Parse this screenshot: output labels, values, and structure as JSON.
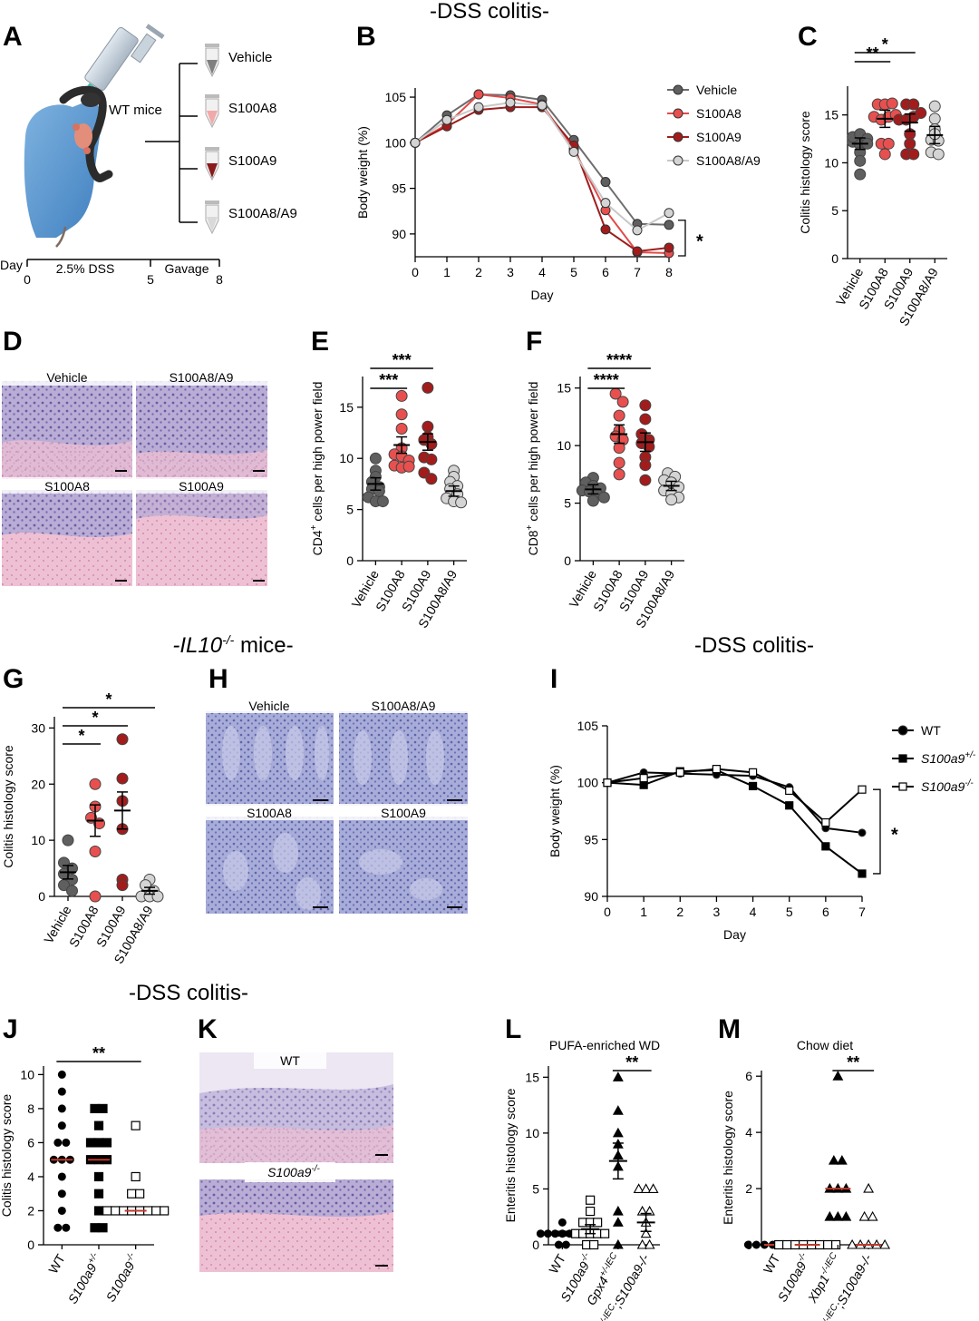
{
  "section_titles": {
    "top": "-DSS colitis-",
    "il10": "-IL10",
    "il10_sup": "-/-",
    "il10_tail": " mice-",
    "dss_right": "-DSS colitis-",
    "dss_bottom": "-DSS colitis-"
  },
  "panel_letters": {
    "A": "A",
    "B": "B",
    "C": "C",
    "D": "D",
    "E": "E",
    "F": "F",
    "G": "G",
    "H": "H",
    "I": "I",
    "J": "J",
    "K": "K",
    "L": "L",
    "M": "M"
  },
  "schematic": {
    "mouse_label": "WT mice",
    "tubes": [
      "Vehicle",
      "S100A8",
      "S100A9",
      "S100A8/A9"
    ],
    "tube_colors": [
      "#7f7f7f",
      "#f2a9a9",
      "#8b1a1a",
      "#d9d9d9"
    ],
    "timeline": {
      "day_label": "Day",
      "dss_label": "2.5% DSS",
      "gavage_label": "Gavage",
      "ticks": [
        "0",
        "5",
        "8"
      ]
    }
  },
  "histology": {
    "D": [
      "Vehicle",
      "S100A8/A9",
      "S100A8",
      "S100A9"
    ],
    "H": [
      "Vehicle",
      "S100A8/A9",
      "S100A8",
      "S100A9"
    ],
    "K": [
      "WT",
      "S100a9",
      "-/-"
    ]
  },
  "colors": {
    "vehicle": "#5f5f5f",
    "s100a8": "#e8504f",
    "s100a9": "#a31c1c",
    "s100a8a9": "#d4d4d4",
    "he_purple": "#9c8fc4",
    "he_pink": "#e6a3bf",
    "blue_stain": "#8d94c9"
  },
  "chart_data": [
    {
      "panel": "B",
      "type": "line",
      "title": "",
      "xlabel": "Day",
      "ylabel": "Body weight (%)",
      "x": [
        0,
        1,
        2,
        3,
        4,
        5,
        6,
        7,
        8
      ],
      "ylim": [
        87.5,
        106
      ],
      "yticks": [
        90,
        95,
        100,
        105
      ],
      "series": [
        {
          "name": "Vehicle",
          "values": [
            100,
            103,
            105.3,
            105.2,
            104.7,
            100.3,
            95.7,
            91.1,
            91.0
          ]
        },
        {
          "name": "S100A8",
          "values": [
            100,
            102,
            105.3,
            104.9,
            104.2,
            99.3,
            92.6,
            88.0,
            87.9
          ]
        },
        {
          "name": "S100A9",
          "values": [
            100,
            101.8,
            103.6,
            103.9,
            103.9,
            99.7,
            90.5,
            88.1,
            88.5
          ]
        },
        {
          "name": "S100A8/A9",
          "values": [
            100,
            102.5,
            103.9,
            104.4,
            104.1,
            99.0,
            93.4,
            90.4,
            92.3
          ]
        }
      ],
      "significance": "*",
      "legend_position": "top-right"
    },
    {
      "panel": "C",
      "type": "scatter",
      "ylabel": "Colitis histology score",
      "ylim": [
        0,
        18
      ],
      "yticks": [
        0,
        5,
        10,
        15
      ],
      "categories": [
        "Vehicle",
        "S100A8",
        "S100A9",
        "S100A8/A9"
      ],
      "points": [
        [
          12.2,
          11.9,
          12.7,
          13.0,
          11.1,
          12.5,
          10.2,
          8.8,
          12.0
        ],
        [
          16.1,
          16.1,
          16.2,
          14.8,
          14.5,
          12.0,
          10.9,
          12.0,
          14.8,
          15.0
        ],
        [
          16.1,
          16.1,
          14.5,
          12.0,
          10.9,
          10.9,
          14.5,
          14.8,
          15.2,
          13.0
        ],
        [
          15.9,
          14.6,
          13.5,
          11.1,
          12.4,
          10.9,
          12.3,
          13.0
        ]
      ],
      "means": [
        12.0,
        14.6,
        14.2,
        12.9
      ],
      "comparisons": [
        {
          "from": 0,
          "to": 1,
          "label": "**"
        },
        {
          "from": 0,
          "to": 2,
          "label": "*"
        }
      ]
    },
    {
      "panel": "E",
      "type": "scatter",
      "ylabel": "CD4",
      "ylabel_sup": "+",
      "ylabel_tail": " cells per high power field",
      "ylim": [
        0,
        18
      ],
      "yticks": [
        0,
        5,
        10,
        15
      ],
      "categories": [
        "Vehicle",
        "S100A8",
        "S100A9",
        "S100A8/A9"
      ],
      "points": [
        [
          10.0,
          8.8,
          8.2,
          7.7,
          7.2,
          7.0,
          6.8,
          6.2,
          5.8,
          5.8
        ],
        [
          16.1,
          14.3,
          12.9,
          11.0,
          10.4,
          10.2,
          9.8,
          9.3,
          9.1,
          9.2
        ],
        [
          16.9,
          13.1,
          12.1,
          11.8,
          11.4,
          10.1,
          9.9,
          8.6,
          8.0
        ],
        [
          8.8,
          8.2,
          7.7,
          7.3,
          7.0,
          6.5,
          6.1,
          5.8,
          5.7
        ]
      ],
      "means": [
        7.5,
        11.3,
        11.6,
        6.8
      ],
      "comparisons": [
        {
          "from": 0,
          "to": 1,
          "label": "***"
        },
        {
          "from": 0,
          "to": 2,
          "label": "***"
        }
      ]
    },
    {
      "panel": "F",
      "type": "scatter",
      "ylabel": "CD8",
      "ylabel_sup": "+",
      "ylabel_tail": " cells per high power field",
      "ylim": [
        0,
        16
      ],
      "yticks": [
        0,
        5,
        10,
        15
      ],
      "categories": [
        "Vehicle",
        "S100A8",
        "S100A9",
        "S100A8/A9"
      ],
      "points": [
        [
          7.2,
          6.8,
          6.5,
          6.3,
          6.1,
          6.0,
          5.8,
          5.5,
          5.2
        ],
        [
          14.5,
          13.8,
          12.6,
          11.3,
          10.8,
          10.5,
          9.8,
          8.5,
          7.5
        ],
        [
          13.5,
          12.3,
          11.0,
          10.5,
          10.2,
          9.9,
          9.0,
          8.3,
          7.0
        ],
        [
          7.6,
          7.3,
          7.0,
          6.8,
          6.4,
          6.1,
          5.8,
          5.5,
          5.3
        ]
      ],
      "means": [
        6.2,
        11.0,
        10.3,
        6.5
      ],
      "comparisons": [
        {
          "from": 0,
          "to": 1,
          "label": "****"
        },
        {
          "from": 0,
          "to": 2,
          "label": "****"
        }
      ]
    },
    {
      "panel": "G",
      "type": "scatter",
      "ylabel": "Colitis histology score",
      "ylim": [
        0,
        32
      ],
      "yticks": [
        0,
        10,
        20,
        30
      ],
      "categories": [
        "Vehicle",
        "S100A8",
        "S100A9",
        "S100A8/A9"
      ],
      "points": [
        [
          10.0,
          6.0,
          5.0,
          4.0,
          3.0,
          2.0,
          1.0
        ],
        [
          20.0,
          16.0,
          14.0,
          13.0,
          8.0,
          0.0
        ],
        [
          28.0,
          21.0,
          17.0,
          12.0,
          3.0,
          2.0
        ],
        [
          3.0,
          2.0,
          1.0,
          0.0,
          0.0,
          0.0
        ]
      ],
      "means": [
        4.3,
        13.5,
        15.3,
        1.0
      ],
      "comparisons": [
        {
          "from": 0,
          "to": 1,
          "label": "*"
        },
        {
          "from": 0,
          "to": 2,
          "label": "*"
        },
        {
          "from": 0,
          "to": 3,
          "label": "*"
        }
      ]
    },
    {
      "panel": "I",
      "type": "line",
      "xlabel": "Day",
      "ylabel": "Body weight (%)",
      "x": [
        0,
        1,
        2,
        3,
        4,
        5,
        6,
        7
      ],
      "ylim": [
        90,
        105
      ],
      "yticks": [
        90,
        95,
        100,
        105
      ],
      "series": [
        {
          "name": "WT",
          "values": [
            100,
            100.9,
            100.8,
            100.7,
            100.6,
            99.6,
            96.0,
            95.6
          ],
          "marker": "circle-filled"
        },
        {
          "name": "S100a9",
          "name_sup": "+/-",
          "values": [
            100,
            99.8,
            101.0,
            101.1,
            99.7,
            98.0,
            94.4,
            92.0
          ],
          "marker": "square-filled"
        },
        {
          "name": "S100a9",
          "name_sup": "-/-",
          "values": [
            100,
            100.4,
            100.9,
            101.2,
            100.9,
            99.3,
            96.5,
            99.4
          ],
          "marker": "square-open"
        }
      ],
      "significance": "*",
      "legend_position": "top-right"
    },
    {
      "panel": "J",
      "type": "scatter",
      "ylabel": "Colitis histology score",
      "ylim": [
        0,
        10.5
      ],
      "yticks": [
        0,
        2,
        4,
        6,
        8,
        10
      ],
      "categories": [
        "WT",
        "S100a9",
        "S100a9"
      ],
      "category_sup": [
        "",
        "+/-",
        "-/-"
      ],
      "points": [
        [
          10,
          9,
          8,
          7,
          6,
          6,
          5,
          5,
          5,
          4,
          3,
          2,
          1,
          1
        ],
        [
          8,
          8,
          7,
          6,
          6,
          6,
          5,
          5,
          5,
          4,
          3,
          2,
          1,
          1
        ],
        [
          7,
          4,
          3,
          3,
          2,
          2,
          2,
          2,
          2,
          2,
          2,
          2
        ]
      ],
      "means": [
        5,
        5,
        2
      ],
      "comparisons": [
        {
          "from": 0,
          "to": 2,
          "label": "**"
        }
      ]
    },
    {
      "panel": "L",
      "type": "scatter",
      "title": "PUFA-enriched WD",
      "ylabel": "Enteritis histology score",
      "ylim": [
        0,
        16
      ],
      "yticks": [
        0,
        5,
        10,
        15
      ],
      "categories": [
        "WT",
        "S100a9",
        "Gpx4",
        "Gpx4"
      ],
      "category_sup": [
        "",
        "-/-",
        "+/-IEC",
        "+/-IEC"
      ],
      "category_tail": [
        "",
        "",
        "",
        ";S100a9-/-"
      ],
      "points": [
        [
          2,
          1,
          1,
          1,
          1,
          1,
          1,
          1,
          0,
          0
        ],
        [
          4,
          3,
          2,
          2,
          2,
          1,
          1,
          1,
          1,
          1,
          0,
          0
        ],
        [
          15,
          12,
          10,
          9,
          8,
          7,
          3,
          2,
          0
        ],
        [
          5,
          5,
          5,
          3,
          3,
          2,
          1,
          0,
          0
        ]
      ],
      "means": [
        1.0,
        1.4,
        7.5,
        2.0
      ],
      "comparisons": [
        {
          "from": 2,
          "to": 3,
          "label": "**"
        }
      ]
    },
    {
      "panel": "M",
      "type": "scatter",
      "title": "Chow diet",
      "ylabel": "Enteritis histology score",
      "ylim": [
        0,
        6.2
      ],
      "yticks": [
        0,
        2,
        4,
        6
      ],
      "categories": [
        "WT",
        "S100a9",
        "Xbp1",
        "Xbp1"
      ],
      "category_sup": [
        "",
        "-/-",
        "-/-IEC",
        "-/-IEC"
      ],
      "category_tail": [
        "",
        "",
        "",
        ";S100a9-/-"
      ],
      "points": [
        [
          0,
          0,
          0,
          0,
          0,
          0,
          0,
          0
        ],
        [
          0,
          0,
          0,
          0,
          0,
          0,
          0,
          0
        ],
        [
          6,
          3,
          3,
          2,
          2,
          2,
          1,
          1,
          1
        ],
        [
          2,
          1,
          1,
          0,
          0,
          0,
          0,
          0
        ]
      ],
      "means": [
        0,
        0,
        2,
        0
      ],
      "comparisons": [
        {
          "from": 2,
          "to": 3,
          "label": "**"
        }
      ]
    }
  ]
}
